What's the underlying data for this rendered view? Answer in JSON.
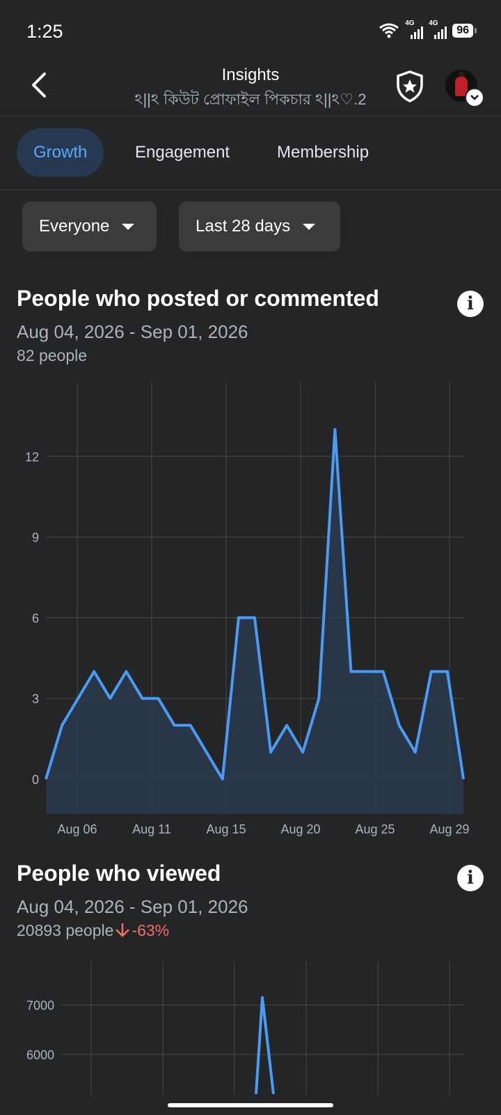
{
  "status": {
    "time": "1:25",
    "battery": "96",
    "net1": "4G",
    "net2": "4G"
  },
  "header": {
    "title": "Insights",
    "subtitle": "ঽ||ঽ কিউট প্রোফাইল পিকচার ঽ||ঽ♡.2"
  },
  "tabs": [
    {
      "label": "Growth",
      "active": true
    },
    {
      "label": "Engagement",
      "active": false
    },
    {
      "label": "Membership",
      "active": false
    }
  ],
  "filters": {
    "audience": "Everyone",
    "period": "Last 28 days"
  },
  "sections": [
    {
      "title": "People who posted or commented",
      "date_range": "Aug 04, 2026 - Sep 01, 2026",
      "count": "82 people"
    },
    {
      "title": "People who viewed",
      "date_range": "Aug 04, 2026 - Sep 01, 2026",
      "count": "20893 people",
      "delta": "-63%"
    }
  ],
  "colors": {
    "accent": "#4a9bf5",
    "fill": "#2a3a4f",
    "decline": "#f3706a",
    "grid": "#4a4b4e"
  },
  "chart_data": [
    {
      "type": "area",
      "x_ticks": [
        "Aug 06",
        "Aug 11",
        "Aug 15",
        "Aug 20",
        "Aug 25",
        "Aug 29"
      ],
      "y_ticks": [
        "0",
        "3",
        "6",
        "9",
        "12"
      ],
      "ylim": [
        0,
        13
      ],
      "values": [
        0,
        2,
        3,
        4,
        3,
        4,
        3,
        3,
        2,
        2,
        1,
        0,
        6,
        6,
        1,
        2,
        1,
        3,
        13,
        4,
        4,
        4,
        2,
        1,
        4,
        4,
        0
      ]
    },
    {
      "type": "line",
      "y_ticks": [
        "7000",
        "6000"
      ],
      "values": [
        7150
      ]
    }
  ]
}
